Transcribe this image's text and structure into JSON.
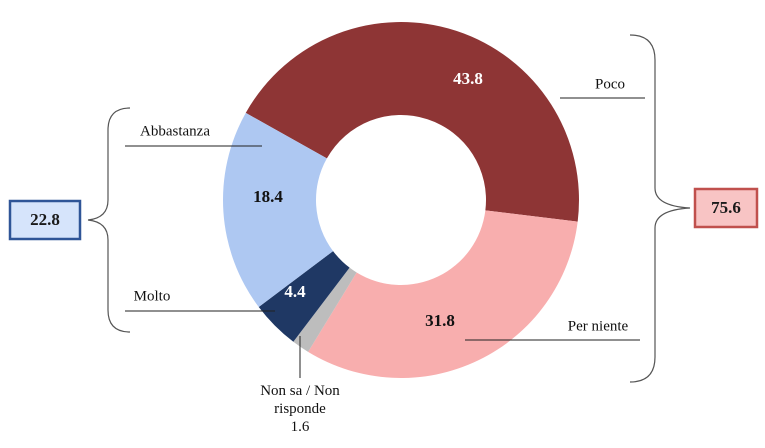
{
  "chart_data": {
    "type": "donut",
    "categories": [
      "Poco",
      "Per niente",
      "Non sa / Non risponde",
      "Molto",
      "Abbastanza"
    ],
    "values": [
      43.8,
      31.8,
      1.6,
      4.4,
      18.4
    ],
    "colors": [
      "#8e3535",
      "#f8aeae",
      "#bdbdbd",
      "#1f3864",
      "#aec8f2"
    ],
    "totals": [
      {
        "value": 22.8,
        "color": "#d6e4fb",
        "border": "#2f5597"
      },
      {
        "value": 75.6,
        "color": "#f8c4c4",
        "border": "#c0504d"
      }
    ]
  }
}
